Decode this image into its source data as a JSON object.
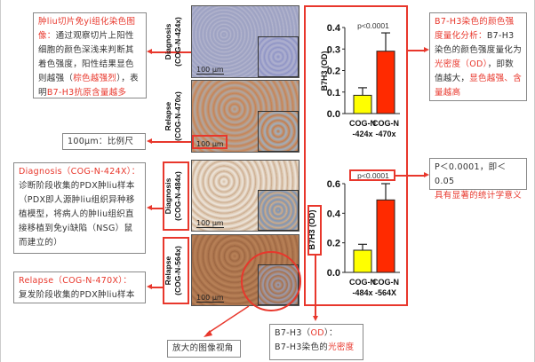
{
  "annotations": {
    "ihc": {
      "title": "肿liu切片免yi组化染色图像：",
      "body": "通过观察切片上阳性细胞的颜色深浅来判断其着色强度，阳性结果显色则越强（",
      "hl1": "棕色越强烈",
      "mid": "），表明",
      "hl2": "B7-H3抗原含量越多"
    },
    "scale_bar": "100μm：比例尺",
    "diagnosis": {
      "title": "Diagnosis（COG-N-424X）：",
      "body": "诊断阶段收集的PDX肿liu样本（PDX即人源肿liu组织异种移植模型，将病人的肿liu组织直接移植到免yi缺陷（NSG）鼠而建立的）"
    },
    "relapse": {
      "title": "Relapse（COG-N-470X）：",
      "body": "复发阶段收集的PDX肿liu样本"
    },
    "zoom_view": "放大的图像视角",
    "od": {
      "l1a": "B7-H3（",
      "l1b": "OD",
      "l1c": "）：",
      "l2a": "B7-H3染色的",
      "l2b": "光密度"
    },
    "quant": {
      "title": "B7-H3染色的颜色强度量化分析：",
      "body": "B7-H3染色的颜色强度量化为",
      "hl1": "光密度（OD）",
      "mid": "，即数值越大，",
      "hl2": "显色越强、含量越高"
    },
    "pvalue": {
      "l1": "P＜0.0001，即＜0.05",
      "l2": "具有显著的统计学意义"
    }
  },
  "images": [
    {
      "label1": "Diagnosis",
      "label2": "(COG-N-424x)",
      "scale": "100 µm",
      "stain": "blue"
    },
    {
      "label1": "Relapse",
      "label2": "(COG-N-470x)",
      "scale": "100 µm",
      "stain": "brown-medium"
    },
    {
      "label1": "Diagnosis",
      "label2": "(COG-N-484x)",
      "scale": "100 µm",
      "stain": "brown-light"
    },
    {
      "label1": "Relapse",
      "label2": "(COG-N-564x)",
      "scale": "100 µm",
      "stain": "brown-dark"
    }
  ],
  "colors": {
    "accent": "#e8372c",
    "diagnosis_bar": "#ffff00",
    "relapse_bar": "#ff2a00"
  },
  "chart_data": [
    {
      "type": "bar",
      "ylabel": "B7H3 (OD)",
      "ylim": [
        0,
        0.4
      ],
      "yticks": [
        "0.0",
        "0.1",
        "0.2",
        "0.3",
        "0.4"
      ],
      "annotation": "p<0.0001",
      "categories": [
        [
          "COG-N",
          "-424x"
        ],
        [
          "COG-N",
          "-470x"
        ]
      ],
      "values": [
        0.085,
        0.29
      ],
      "errors": [
        0.035,
        0.085
      ]
    },
    {
      "type": "bar",
      "ylabel": "B7H3 (OD)",
      "ylim": [
        0,
        0.6
      ],
      "yticks": [
        "0.0",
        "0.2",
        "0.4",
        "0.6"
      ],
      "annotation": "p<0.0001",
      "categories": [
        [
          "COG-N",
          "-484x"
        ],
        [
          "COG-N",
          "-564X"
        ]
      ],
      "values": [
        0.15,
        0.49
      ],
      "errors": [
        0.04,
        0.11
      ]
    }
  ]
}
